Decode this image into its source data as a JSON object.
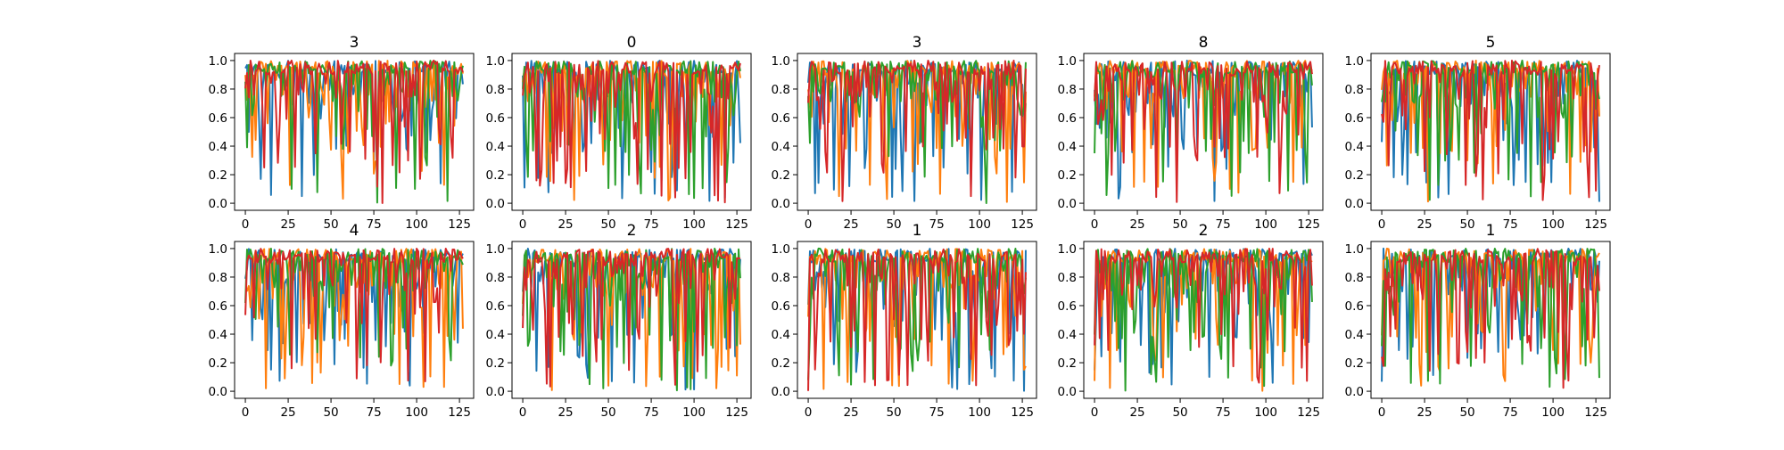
{
  "figure": {
    "rows": 2,
    "cols": 5
  },
  "style": {
    "background": "#ffffff",
    "axes_edge": "#000000",
    "series_colors": [
      "#1f77b4",
      "#ff7f0e",
      "#2ca02c",
      "#d62728"
    ]
  },
  "chart_data": [
    {
      "type": "line",
      "title": "3",
      "xlim": [
        0,
        127
      ],
      "ylim": [
        0.0,
        1.0
      ],
      "xticks": [
        0,
        25,
        50,
        75,
        100,
        125
      ],
      "yticks": [
        0.0,
        0.2,
        0.4,
        0.6,
        0.8,
        1.0
      ],
      "n_points": 128,
      "n_series": 4,
      "grid": false,
      "legend": "none"
    },
    {
      "type": "line",
      "title": "0",
      "xlim": [
        0,
        127
      ],
      "ylim": [
        0.0,
        1.0
      ],
      "xticks": [
        0,
        25,
        50,
        75,
        100,
        125
      ],
      "yticks": [
        0.0,
        0.2,
        0.4,
        0.6,
        0.8,
        1.0
      ],
      "n_points": 128,
      "n_series": 4,
      "grid": false,
      "legend": "none"
    },
    {
      "type": "line",
      "title": "3",
      "xlim": [
        0,
        127
      ],
      "ylim": [
        0.0,
        1.0
      ],
      "xticks": [
        0,
        25,
        50,
        75,
        100,
        125
      ],
      "yticks": [
        0.0,
        0.2,
        0.4,
        0.6,
        0.8,
        1.0
      ],
      "n_points": 128,
      "n_series": 4,
      "grid": false,
      "legend": "none"
    },
    {
      "type": "line",
      "title": "8",
      "xlim": [
        0,
        127
      ],
      "ylim": [
        0.0,
        1.0
      ],
      "xticks": [
        0,
        25,
        50,
        75,
        100,
        125
      ],
      "yticks": [
        0.0,
        0.2,
        0.4,
        0.6,
        0.8,
        1.0
      ],
      "n_points": 128,
      "n_series": 4,
      "grid": false,
      "legend": "none"
    },
    {
      "type": "line",
      "title": "5",
      "xlim": [
        0,
        127
      ],
      "ylim": [
        0.0,
        1.0
      ],
      "xticks": [
        0,
        25,
        50,
        75,
        100,
        125
      ],
      "yticks": [
        0.0,
        0.2,
        0.4,
        0.6,
        0.8,
        1.0
      ],
      "n_points": 128,
      "n_series": 4,
      "grid": false,
      "legend": "none"
    },
    {
      "type": "line",
      "title": "4",
      "xlim": [
        0,
        127
      ],
      "ylim": [
        0.0,
        1.0
      ],
      "xticks": [
        0,
        25,
        50,
        75,
        100,
        125
      ],
      "yticks": [
        0.0,
        0.2,
        0.4,
        0.6,
        0.8,
        1.0
      ],
      "n_points": 128,
      "n_series": 4,
      "grid": false,
      "legend": "none"
    },
    {
      "type": "line",
      "title": "2",
      "xlim": [
        0,
        127
      ],
      "ylim": [
        0.0,
        1.0
      ],
      "xticks": [
        0,
        25,
        50,
        75,
        100,
        125
      ],
      "yticks": [
        0.0,
        0.2,
        0.4,
        0.6,
        0.8,
        1.0
      ],
      "n_points": 128,
      "n_series": 4,
      "grid": false,
      "legend": "none"
    },
    {
      "type": "line",
      "title": "1",
      "xlim": [
        0,
        127
      ],
      "ylim": [
        0.0,
        1.0
      ],
      "xticks": [
        0,
        25,
        50,
        75,
        100,
        125
      ],
      "yticks": [
        0.0,
        0.2,
        0.4,
        0.6,
        0.8,
        1.0
      ],
      "n_points": 128,
      "n_series": 4,
      "grid": false,
      "legend": "none"
    },
    {
      "type": "line",
      "title": "2",
      "xlim": [
        0,
        127
      ],
      "ylim": [
        0.0,
        1.0
      ],
      "xticks": [
        0,
        25,
        50,
        75,
        100,
        125
      ],
      "yticks": [
        0.0,
        0.2,
        0.4,
        0.6,
        0.8,
        1.0
      ],
      "n_points": 128,
      "n_series": 4,
      "grid": false,
      "legend": "none"
    },
    {
      "type": "line",
      "title": "1",
      "xlim": [
        0,
        127
      ],
      "ylim": [
        0.0,
        1.0
      ],
      "xticks": [
        0,
        25,
        50,
        75,
        100,
        125
      ],
      "yticks": [
        0.0,
        0.2,
        0.4,
        0.6,
        0.8,
        1.0
      ],
      "n_points": 128,
      "n_series": 4,
      "grid": false,
      "legend": "none"
    }
  ]
}
